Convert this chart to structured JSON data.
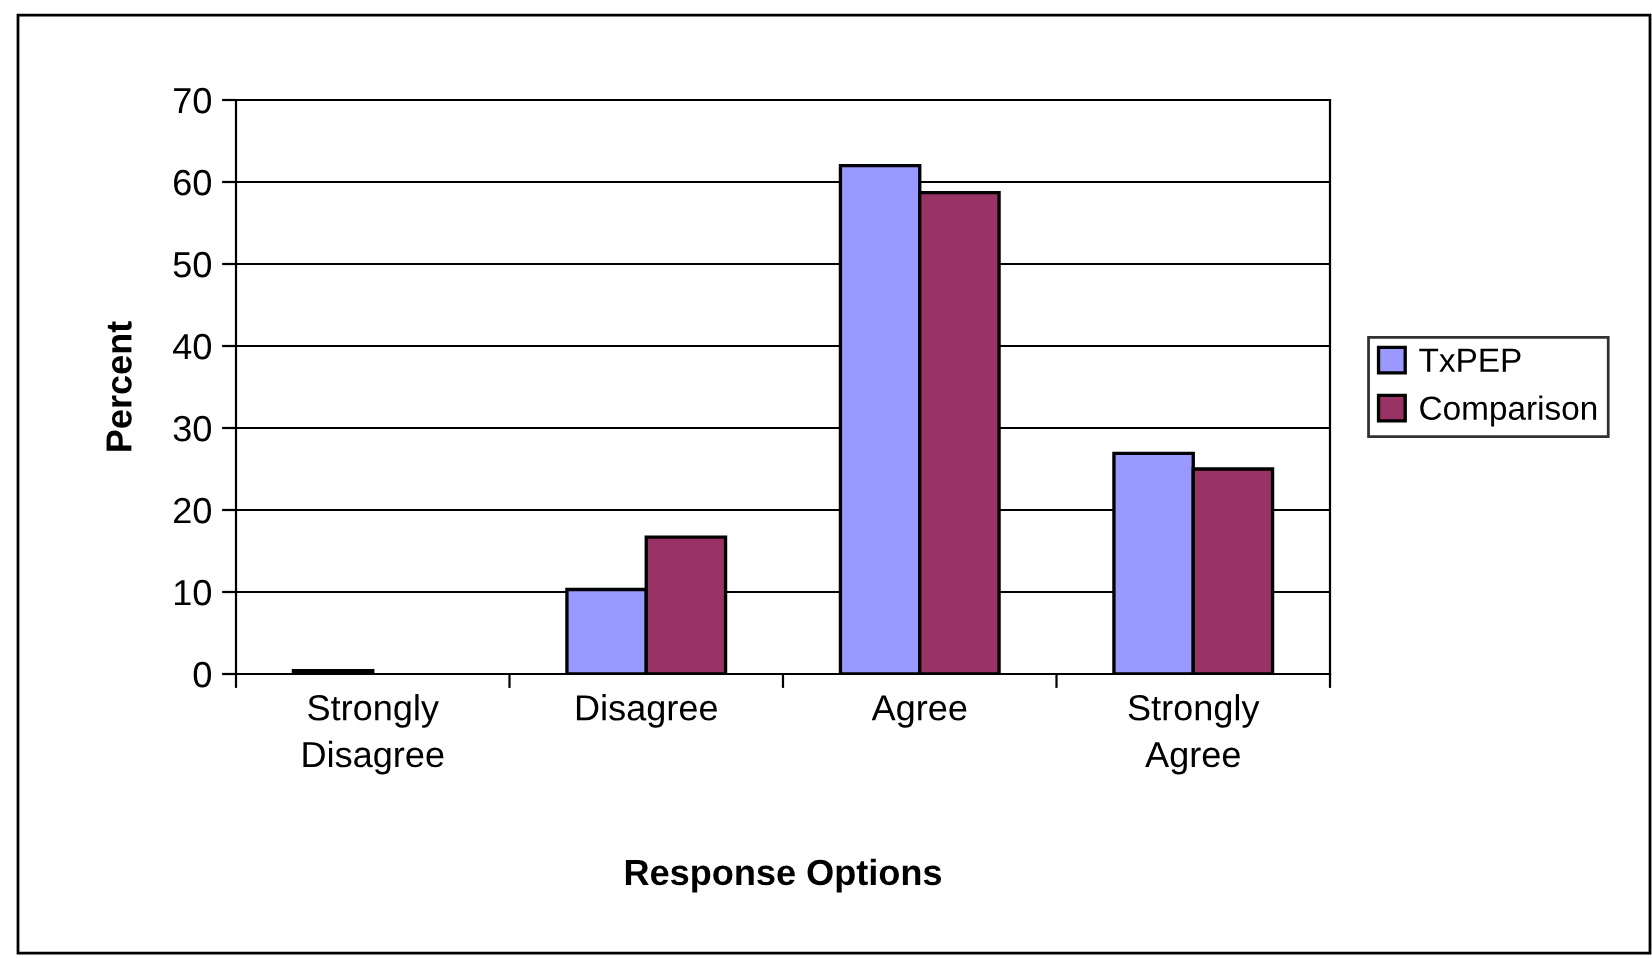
{
  "chart_data": {
    "type": "bar",
    "xlabel": "Response Options",
    "ylabel": "Percent",
    "categories": [
      "Strongly\nDisagree",
      "Disagree",
      "Agree",
      "Strongly\nAgree"
    ],
    "series": [
      {
        "name": "TxPEP",
        "color": "#9999ff",
        "values": [
          0.4,
          10.3,
          62,
          26.9
        ]
      },
      {
        "name": "Comparison",
        "color": "#993366",
        "values": [
          null,
          16.7,
          58.7,
          25
        ]
      }
    ],
    "ylim": [
      0,
      70
    ],
    "yticks": [
      0,
      10,
      20,
      30,
      40,
      50,
      60,
      70
    ],
    "grid": "y",
    "legend": "right"
  }
}
